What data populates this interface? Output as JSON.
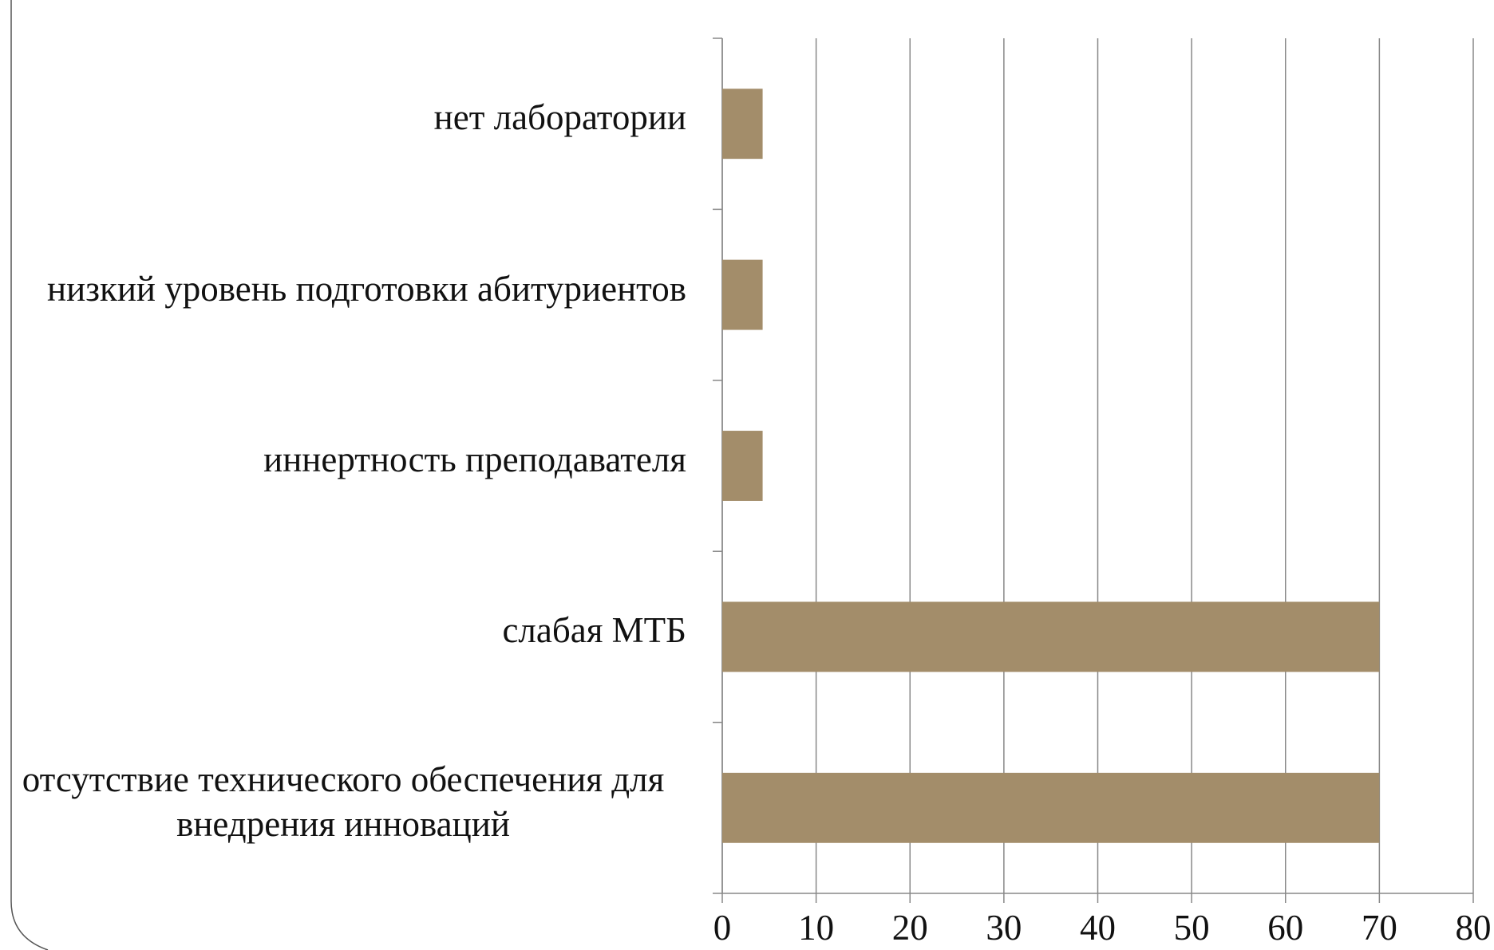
{
  "chart_data": {
    "type": "bar",
    "orientation": "horizontal",
    "categories": [
      "нет лаборатории",
      "низкий уровень подготовки абитуриентов",
      "иннертность преподавателя",
      "слабая МТБ",
      "отсутствие технического обеспечения для внедрения инноваций"
    ],
    "values": [
      4.3,
      4.3,
      4.3,
      70,
      70
    ],
    "color": "#a38d6a",
    "xlim": [
      0,
      80
    ],
    "xticks": [
      0,
      10,
      20,
      30,
      40,
      50,
      60,
      70,
      80
    ],
    "grid": true
  }
}
